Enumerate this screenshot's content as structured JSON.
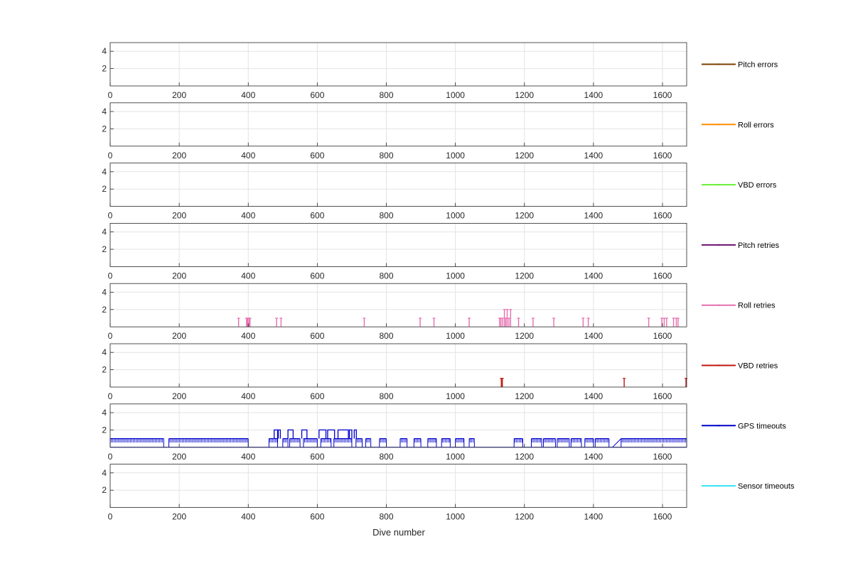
{
  "chart_data": {
    "type": "line",
    "xlabel": "Dive number",
    "xlim": [
      0,
      1670
    ],
    "ylim": [
      0,
      5
    ],
    "xticks": [
      0,
      200,
      400,
      600,
      800,
      1000,
      1200,
      1400,
      1600
    ],
    "yticks": [
      2,
      4
    ],
    "grid": true,
    "legend_placement": "right of each panel",
    "panels": [
      {
        "name": "Pitch errors",
        "color": "#7b3f00",
        "data": []
      },
      {
        "name": "Roll errors",
        "color": "#ff8c00",
        "data": []
      },
      {
        "name": "VBD errors",
        "color": "#66ee33",
        "data": []
      },
      {
        "name": "Pitch retries",
        "color": "#6b0f6b",
        "data": []
      },
      {
        "name": "Roll retries",
        "color": "#e66fb0",
        "data": [
          [
            372,
            1
          ],
          [
            395,
            1
          ],
          [
            398,
            1
          ],
          [
            402,
            1
          ],
          [
            405,
            1
          ],
          [
            482,
            1
          ],
          [
            495,
            1
          ],
          [
            736,
            1
          ],
          [
            898,
            1
          ],
          [
            938,
            1
          ],
          [
            1040,
            1
          ],
          [
            1128,
            1
          ],
          [
            1132,
            1
          ],
          [
            1137,
            1
          ],
          [
            1142,
            2
          ],
          [
            1146,
            1
          ],
          [
            1150,
            2
          ],
          [
            1155,
            1
          ],
          [
            1160,
            2
          ],
          [
            1183,
            1
          ],
          [
            1225,
            1
          ],
          [
            1285,
            1
          ],
          [
            1370,
            1
          ],
          [
            1385,
            1
          ],
          [
            1560,
            1
          ],
          [
            1598,
            1
          ],
          [
            1605,
            1
          ],
          [
            1612,
            1
          ],
          [
            1632,
            1
          ],
          [
            1640,
            1
          ],
          [
            1645,
            1
          ]
        ]
      },
      {
        "name": "VBD retries",
        "color": "#c0140f",
        "data": [
          [
            1133,
            1
          ],
          [
            1136,
            1
          ],
          [
            1489,
            1
          ],
          [
            1668,
            1
          ]
        ]
      },
      {
        "name": "GPS timeouts",
        "color": "#0000cc",
        "segments": [
          [
            0,
            155
          ],
          [
            170,
            400
          ],
          [
            460,
            485
          ],
          [
            500,
            515
          ],
          [
            520,
            550
          ],
          [
            560,
            600
          ],
          [
            610,
            640
          ],
          [
            648,
            700
          ],
          [
            712,
            730
          ],
          [
            740,
            755
          ],
          [
            780,
            800
          ],
          [
            840,
            860
          ],
          [
            880,
            900
          ],
          [
            920,
            945
          ],
          [
            960,
            985
          ],
          [
            1000,
            1025
          ],
          [
            1040,
            1055
          ],
          [
            1170,
            1195
          ],
          [
            1220,
            1250
          ],
          [
            1255,
            1290
          ],
          [
            1295,
            1330
          ],
          [
            1335,
            1365
          ],
          [
            1375,
            1400
          ],
          [
            1405,
            1445
          ],
          [
            1480,
            1670
          ]
        ],
        "twos": [
          [
            475,
            485
          ],
          [
            487,
            493
          ],
          [
            515,
            530
          ],
          [
            555,
            570
          ],
          [
            605,
            625
          ],
          [
            630,
            650
          ],
          [
            660,
            690
          ],
          [
            693,
            700
          ],
          [
            707,
            713
          ]
        ]
      },
      {
        "name": "Sensor timeouts",
        "color": "#33e5f5",
        "data": []
      }
    ]
  }
}
